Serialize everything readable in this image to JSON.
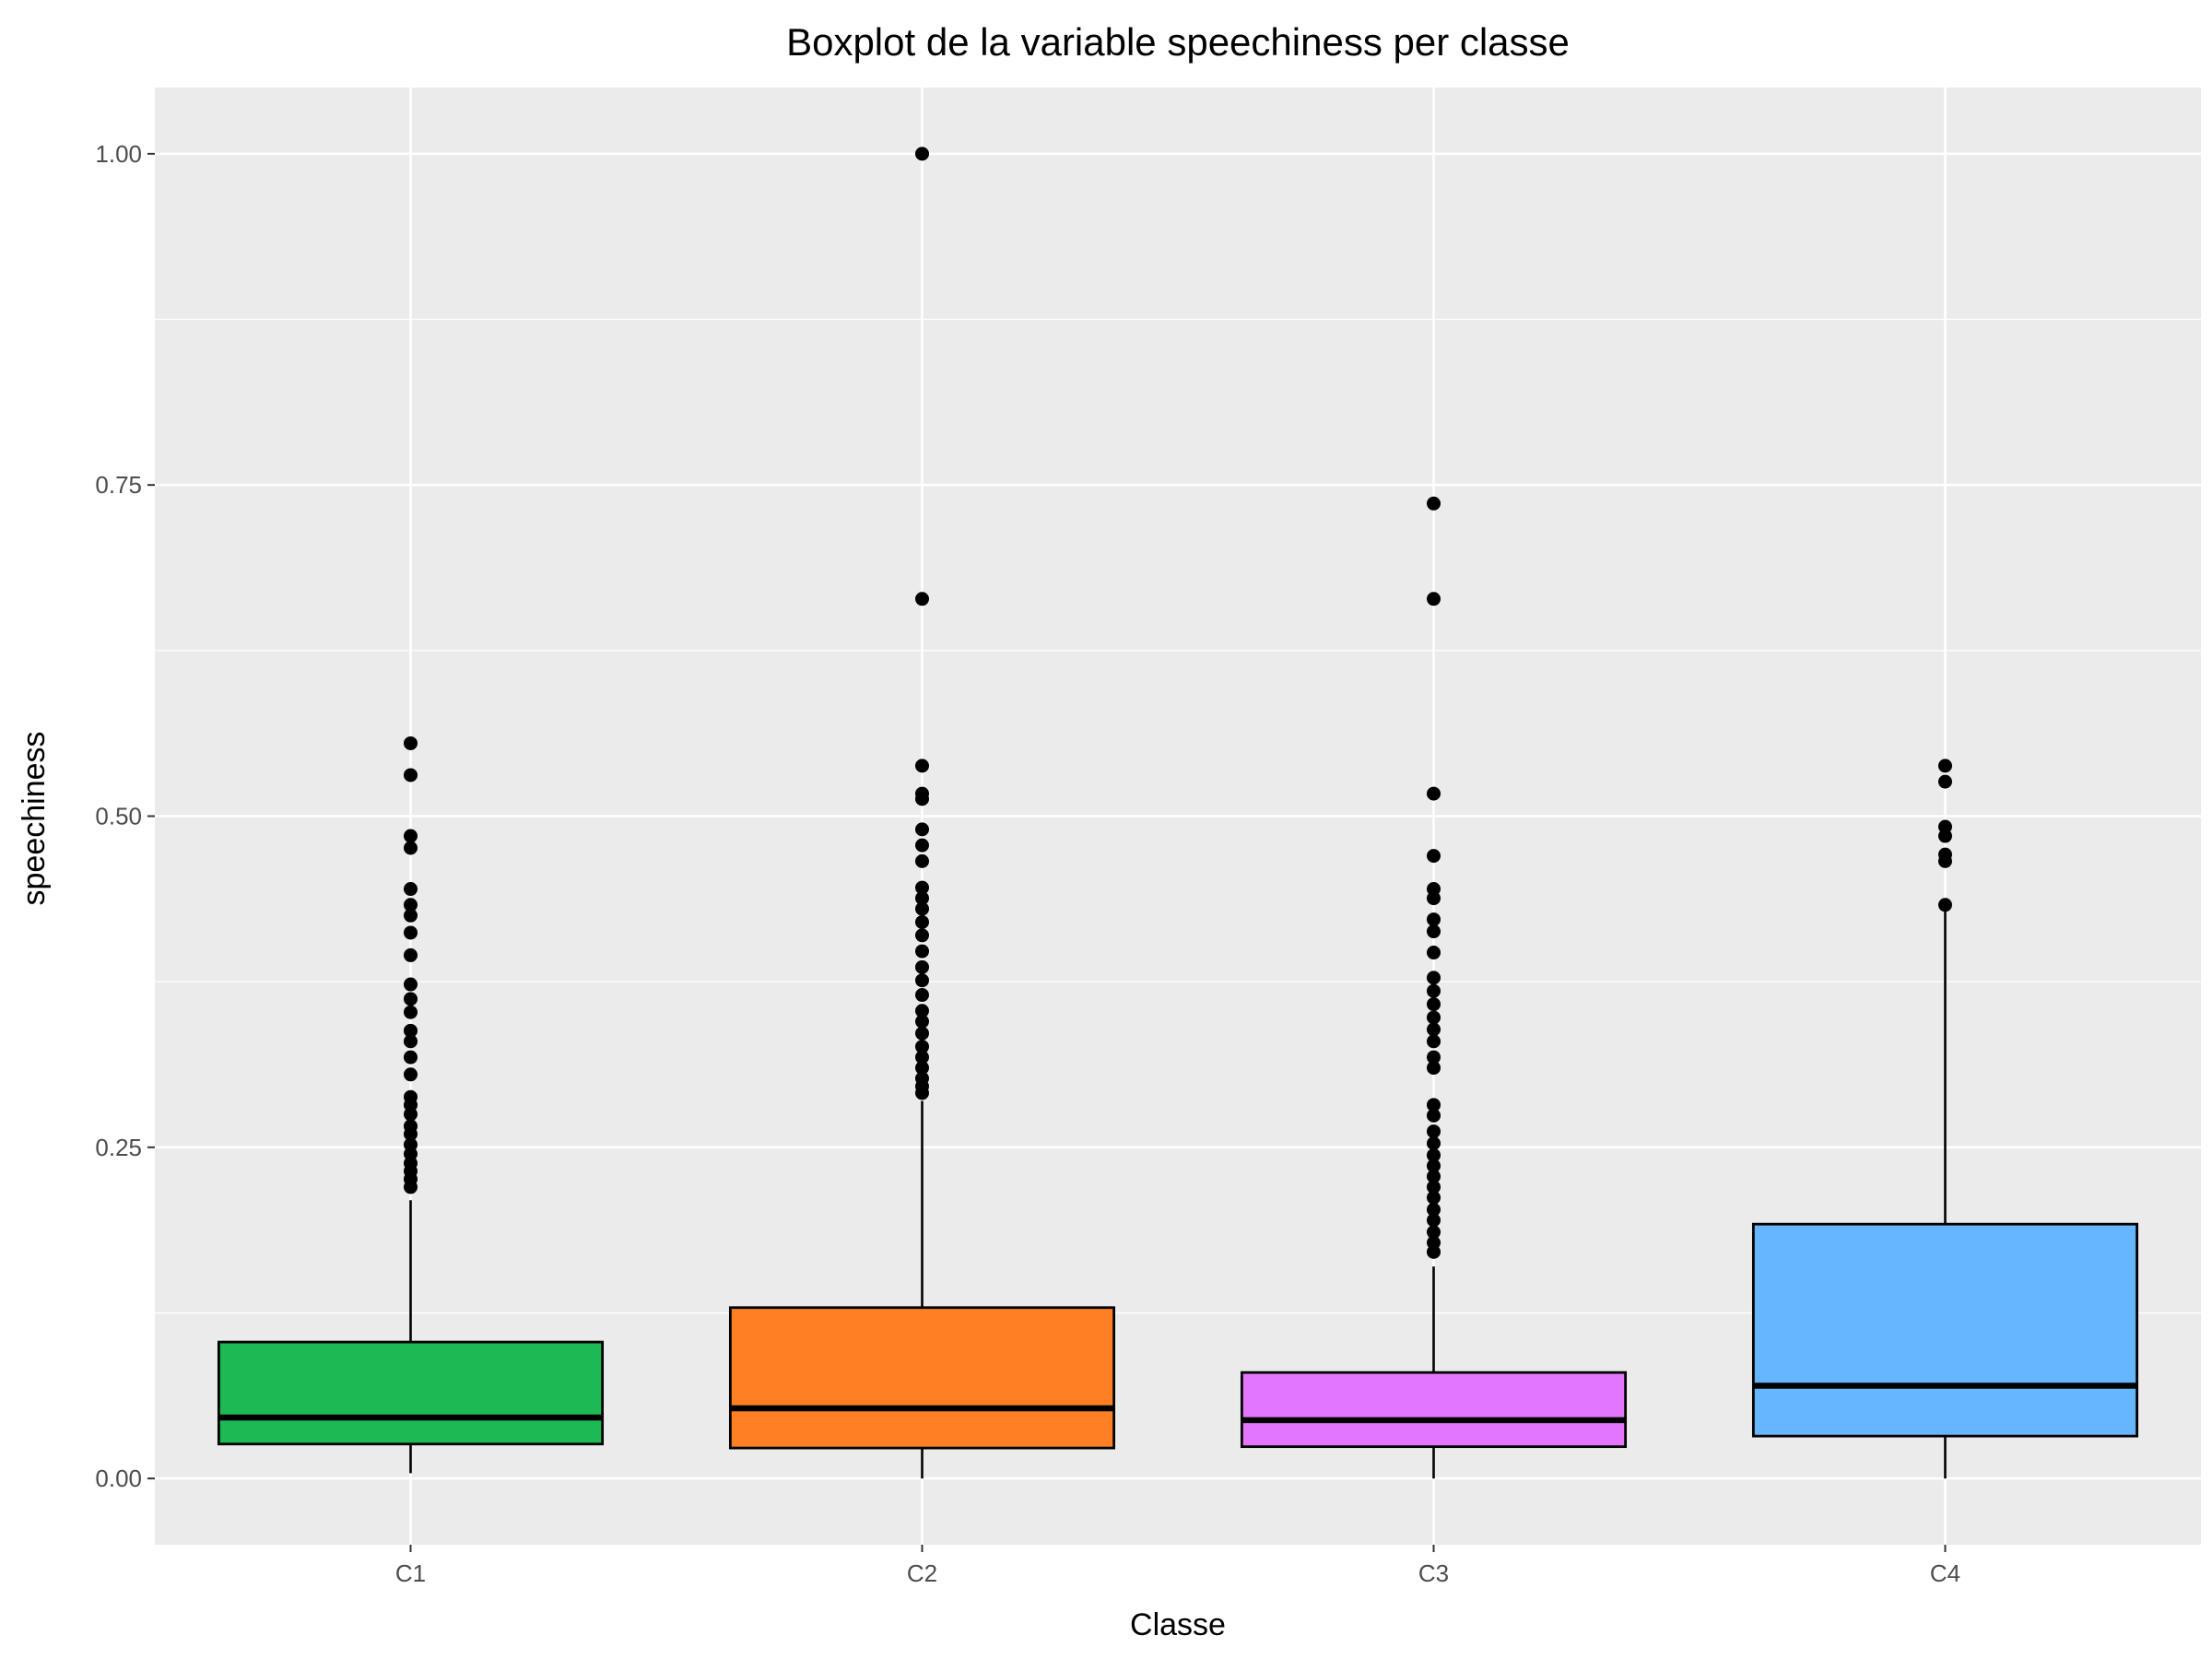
{
  "chart_data": {
    "type": "boxplot",
    "title": "Boxplot de la variable speechiness per classe",
    "xlabel": "Classe",
    "ylabel": "speechiness",
    "ylim": [
      -0.05,
      1.05
    ],
    "y_ticks": [
      0.0,
      0.25,
      0.5,
      0.75,
      1.0
    ],
    "y_tick_labels": [
      "0.00",
      "0.25",
      "0.50",
      "0.75",
      "1.00"
    ],
    "grid": true,
    "legend": "none",
    "categories": [
      "C1",
      "C2",
      "C3",
      "C4"
    ],
    "boxes": [
      {
        "category": "C1",
        "color": "#1db954",
        "whisker_low": 0.004,
        "q1": 0.026,
        "median": 0.046,
        "q3": 0.103,
        "whisker_high": 0.21,
        "outliers": [
          0.22,
          0.226,
          0.232,
          0.238,
          0.245,
          0.252,
          0.26,
          0.266,
          0.275,
          0.282,
          0.288,
          0.305,
          0.318,
          0.33,
          0.338,
          0.352,
          0.362,
          0.373,
          0.395,
          0.412,
          0.425,
          0.433,
          0.445,
          0.476,
          0.485,
          0.531,
          0.555
        ]
      },
      {
        "category": "C2",
        "color": "#ff7f24",
        "whisker_low": 0.0,
        "q1": 0.023,
        "median": 0.053,
        "q3": 0.129,
        "whisker_high": 0.285,
        "outliers": [
          0.291,
          0.296,
          0.302,
          0.31,
          0.318,
          0.326,
          0.336,
          0.345,
          0.353,
          0.365,
          0.376,
          0.386,
          0.398,
          0.41,
          0.42,
          0.43,
          0.438,
          0.446,
          0.466,
          0.478,
          0.49,
          0.513,
          0.517,
          0.538,
          0.664,
          1.0
        ]
      },
      {
        "category": "C3",
        "color": "#e276ff",
        "whisker_low": 0.0,
        "q1": 0.024,
        "median": 0.044,
        "q3": 0.08,
        "whisker_high": 0.16,
        "outliers": [
          0.171,
          0.178,
          0.186,
          0.195,
          0.203,
          0.212,
          0.22,
          0.228,
          0.236,
          0.244,
          0.253,
          0.262,
          0.274,
          0.282,
          0.31,
          0.318,
          0.33,
          0.339,
          0.348,
          0.358,
          0.368,
          0.378,
          0.397,
          0.413,
          0.422,
          0.438,
          0.445,
          0.47,
          0.517,
          0.664,
          0.736
        ]
      },
      {
        "category": "C4",
        "color": "#66b5ff",
        "whisker_low": 0.0,
        "q1": 0.032,
        "median": 0.07,
        "q3": 0.192,
        "whisker_high": 0.43,
        "outliers": [
          0.433,
          0.466,
          0.471,
          0.485,
          0.492,
          0.526,
          0.538
        ]
      }
    ]
  }
}
